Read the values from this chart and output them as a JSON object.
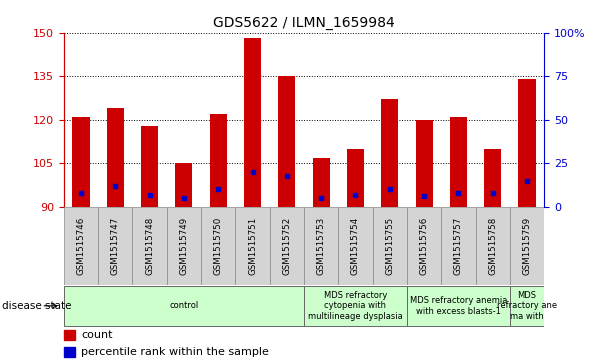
{
  "title": "GDS5622 / ILMN_1659984",
  "samples": [
    "GSM1515746",
    "GSM1515747",
    "GSM1515748",
    "GSM1515749",
    "GSM1515750",
    "GSM1515751",
    "GSM1515752",
    "GSM1515753",
    "GSM1515754",
    "GSM1515755",
    "GSM1515756",
    "GSM1515757",
    "GSM1515758",
    "GSM1515759"
  ],
  "counts": [
    121,
    124,
    118,
    105,
    122,
    148,
    135,
    107,
    110,
    127,
    120,
    121,
    110,
    134
  ],
  "percentile_ranks": [
    8,
    12,
    7,
    5,
    10,
    20,
    18,
    5,
    7,
    10,
    6,
    8,
    8,
    15
  ],
  "y_min": 90,
  "y_max": 150,
  "y_ticks_left": [
    90,
    105,
    120,
    135,
    150
  ],
  "y_ticks_right_vals": [
    0,
    25,
    50,
    75,
    100
  ],
  "bar_color": "#cc0000",
  "dot_color": "#0000cc",
  "bar_width": 0.5,
  "disease_groups": [
    {
      "label": "control",
      "start": 0,
      "end": 7
    },
    {
      "label": "MDS refractory\ncytopenia with\nmultilineage dysplasia",
      "start": 7,
      "end": 10
    },
    {
      "label": "MDS refractory anemia\nwith excess blasts-1",
      "start": 10,
      "end": 13
    },
    {
      "label": "MDS\nrefractory ane\nma with",
      "start": 13,
      "end": 14
    }
  ],
  "disease_bg_color": "#ccffcc",
  "disease_state_label": "disease state",
  "legend_count_label": "count",
  "legend_percentile_label": "percentile rank within the sample",
  "title_color": "#000000",
  "left_axis_color": "#cc0000",
  "right_axis_color": "#0000cc",
  "xtick_bg_color": "#d4d4d4",
  "xtick_edge_color": "#888888"
}
